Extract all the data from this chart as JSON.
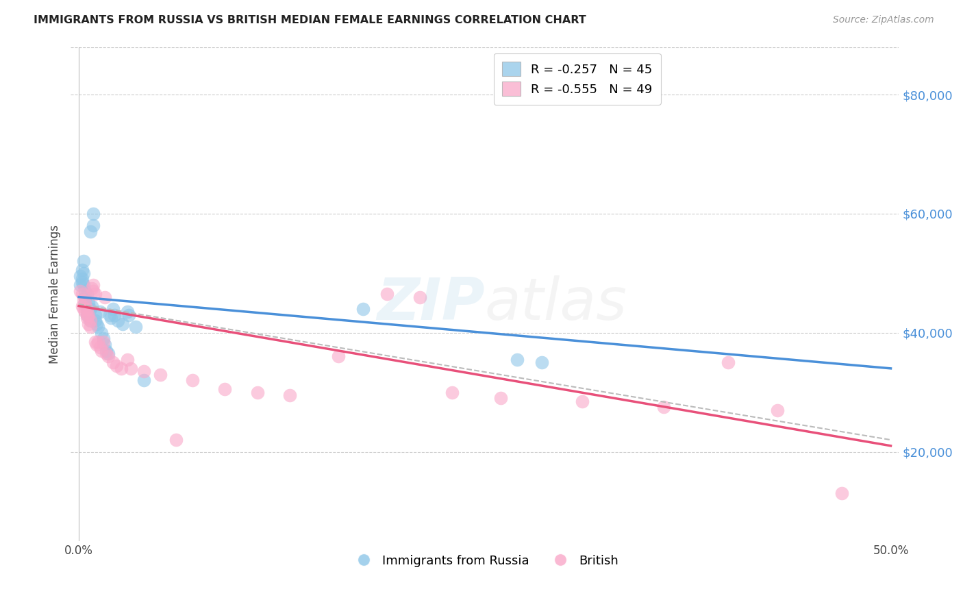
{
  "title": "IMMIGRANTS FROM RUSSIA VS BRITISH MEDIAN FEMALE EARNINGS CORRELATION CHART",
  "source": "Source: ZipAtlas.com",
  "ylabel": "Median Female Earnings",
  "ytick_labels": [
    "$20,000",
    "$40,000",
    "$60,000",
    "$80,000"
  ],
  "ytick_values": [
    20000,
    40000,
    60000,
    80000
  ],
  "ylim": [
    5000,
    88000
  ],
  "xlim": [
    -0.005,
    0.505
  ],
  "legend_line1": "R = -0.257   N = 45",
  "legend_line2": "R = -0.555   N = 49",
  "legend_color1": "#8ec6e8",
  "legend_color2": "#f9a8c9",
  "scatter_color_blue": "#8ec6e8",
  "scatter_color_pink": "#f9a8c9",
  "line_color_blue": "#4a90d9",
  "line_color_pink": "#e8507a",
  "line_color_gray": "#bbbbbb",
  "blue_scatter": [
    [
      0.001,
      49500
    ],
    [
      0.001,
      48000
    ],
    [
      0.002,
      50500
    ],
    [
      0.002,
      49000
    ],
    [
      0.002,
      48500
    ],
    [
      0.003,
      52000
    ],
    [
      0.003,
      50000
    ],
    [
      0.003,
      48000
    ],
    [
      0.004,
      47000
    ],
    [
      0.004,
      46000
    ],
    [
      0.004,
      45000
    ],
    [
      0.005,
      46500
    ],
    [
      0.005,
      44000
    ],
    [
      0.005,
      43000
    ],
    [
      0.006,
      45000
    ],
    [
      0.006,
      43500
    ],
    [
      0.007,
      57000
    ],
    [
      0.007,
      44000
    ],
    [
      0.007,
      42000
    ],
    [
      0.008,
      44500
    ],
    [
      0.009,
      60000
    ],
    [
      0.009,
      58000
    ],
    [
      0.01,
      43000
    ],
    [
      0.01,
      42000
    ],
    [
      0.011,
      41500
    ],
    [
      0.012,
      41000
    ],
    [
      0.013,
      43500
    ],
    [
      0.014,
      40000
    ],
    [
      0.015,
      39000
    ],
    [
      0.016,
      38000
    ],
    [
      0.017,
      37000
    ],
    [
      0.018,
      36500
    ],
    [
      0.019,
      43000
    ],
    [
      0.02,
      42500
    ],
    [
      0.021,
      44000
    ],
    [
      0.022,
      43000
    ],
    [
      0.024,
      42000
    ],
    [
      0.027,
      41500
    ],
    [
      0.03,
      43500
    ],
    [
      0.031,
      43000
    ],
    [
      0.035,
      41000
    ],
    [
      0.04,
      32000
    ],
    [
      0.175,
      44000
    ],
    [
      0.27,
      35500
    ],
    [
      0.285,
      35000
    ]
  ],
  "pink_scatter": [
    [
      0.001,
      47000
    ],
    [
      0.002,
      46500
    ],
    [
      0.002,
      44500
    ],
    [
      0.003,
      45500
    ],
    [
      0.003,
      44000
    ],
    [
      0.004,
      45000
    ],
    [
      0.004,
      43500
    ],
    [
      0.005,
      44000
    ],
    [
      0.005,
      43000
    ],
    [
      0.005,
      42500
    ],
    [
      0.006,
      43000
    ],
    [
      0.006,
      41500
    ],
    [
      0.007,
      42000
    ],
    [
      0.007,
      41000
    ],
    [
      0.008,
      47500
    ],
    [
      0.009,
      48000
    ],
    [
      0.009,
      47000
    ],
    [
      0.01,
      46500
    ],
    [
      0.01,
      38500
    ],
    [
      0.011,
      38000
    ],
    [
      0.012,
      38500
    ],
    [
      0.013,
      37500
    ],
    [
      0.014,
      37000
    ],
    [
      0.015,
      38500
    ],
    [
      0.016,
      46000
    ],
    [
      0.017,
      36500
    ],
    [
      0.018,
      36000
    ],
    [
      0.021,
      35000
    ],
    [
      0.023,
      34500
    ],
    [
      0.026,
      34000
    ],
    [
      0.03,
      35500
    ],
    [
      0.032,
      34000
    ],
    [
      0.04,
      33500
    ],
    [
      0.05,
      33000
    ],
    [
      0.06,
      22000
    ],
    [
      0.07,
      32000
    ],
    [
      0.09,
      30500
    ],
    [
      0.11,
      30000
    ],
    [
      0.13,
      29500
    ],
    [
      0.16,
      36000
    ],
    [
      0.19,
      46500
    ],
    [
      0.21,
      46000
    ],
    [
      0.23,
      30000
    ],
    [
      0.26,
      29000
    ],
    [
      0.31,
      28500
    ],
    [
      0.36,
      27500
    ],
    [
      0.4,
      35000
    ],
    [
      0.43,
      27000
    ],
    [
      0.47,
      13000
    ]
  ],
  "blue_line_x": [
    0.0,
    0.5
  ],
  "blue_line_y": [
    46000,
    34000
  ],
  "pink_line_x": [
    0.0,
    0.5
  ],
  "pink_line_y": [
    44500,
    21000
  ],
  "dashed_line_x": [
    0.0,
    0.5
  ],
  "dashed_line_y": [
    44800,
    22000
  ]
}
